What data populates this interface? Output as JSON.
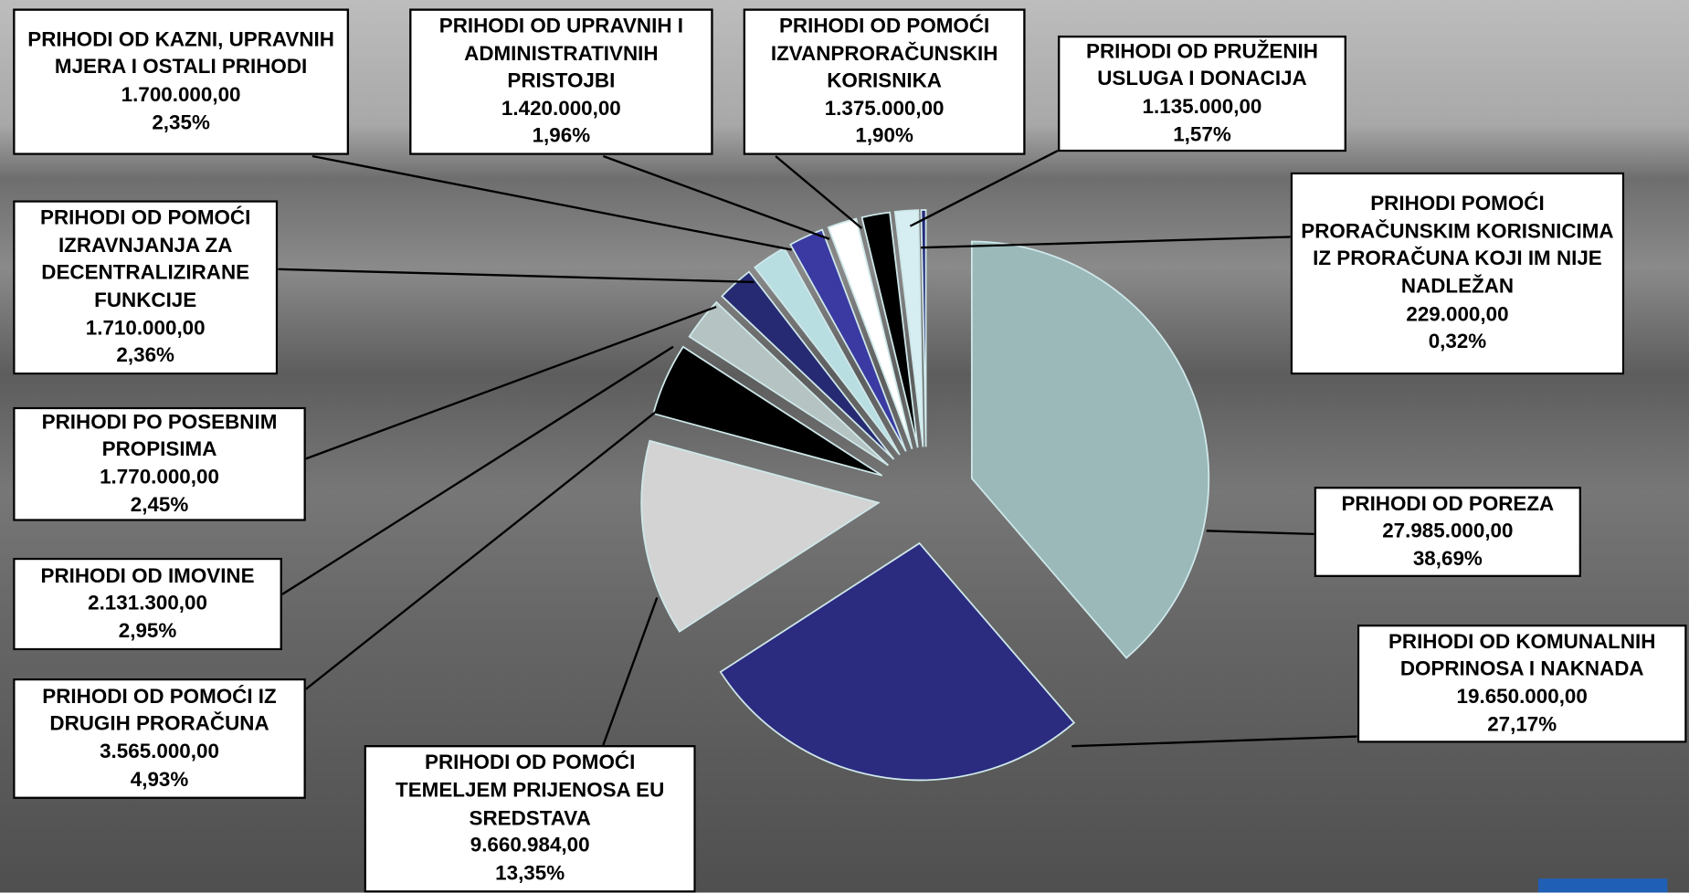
{
  "chart_data": {
    "type": "pie",
    "categories": [
      "PRIHODI OD POREZA",
      "PRIHODI OD KOMUNALNIH DOPRINOSA I NAKNADA",
      "PRIHODI OD POMOĆI TEMELJEM PRIJENOSA EU SREDSTAVA",
      "PRIHODI OD POMOĆI IZ DRUGIH PRORAČUNA",
      "PRIHODI OD IMOVINE",
      "PRIHODI PO POSEBNIM PROPISIMA",
      "PRIHODI OD POMOĆI IZRAVNJANJA ZA DECENTRALIZIRANE FUNKCIJE",
      "PRIHODI OD KAZNI, UPRAVNIH MJERA I OSTALI PRIHODI",
      "PRIHODI OD UPRAVNIH I ADMINISTRATIVNIH PRISTOJBI",
      "PRIHODI OD POMOĆI IZVANPRORAČUNSKIH KORISNIKA",
      "PRIHODI OD PRUŽENIH USLUGA I DONACIJA",
      "PRIHODI POMOĆI PRORAČUNSKIM KORISNICIMA IZ PRORAČUNA KOJI IM NIJE NADLEŽAN"
    ],
    "values": [
      27985000,
      19650000,
      9660984,
      3565000,
      2131300,
      1770000,
      1710000,
      1700000,
      1420000,
      1375000,
      1135000,
      229000
    ],
    "value_labels": [
      "27.985.000,00",
      "19.650.000,00",
      "9.660.984,00",
      "3.565.000,00",
      "2.131.300,00",
      "1.770.000,00",
      "1.710.000,00",
      "1.700.000,00",
      "1.420.000,00",
      "1.375.000,00",
      "1.135.000,00",
      "229.000,00"
    ],
    "percents": [
      38.69,
      27.17,
      13.35,
      4.93,
      2.95,
      2.45,
      2.36,
      2.35,
      1.96,
      1.9,
      1.57,
      0.32
    ],
    "percent_labels": [
      "38,69%",
      "27,17%",
      "13,35%",
      "4,93%",
      "2,95%",
      "2,45%",
      "2,36%",
      "2,35%",
      "1,96%",
      "1,90%",
      "1,57%",
      "0,32%"
    ],
    "colors": [
      "#9bb9b9",
      "#2b2b80",
      "#d3d3d3",
      "#000000",
      "#b5c3c3",
      "#262a72",
      "#b8dee2",
      "#3a3aa2",
      "#ffffff",
      "#000000",
      "#d6eef1",
      "#25287a"
    ]
  }
}
